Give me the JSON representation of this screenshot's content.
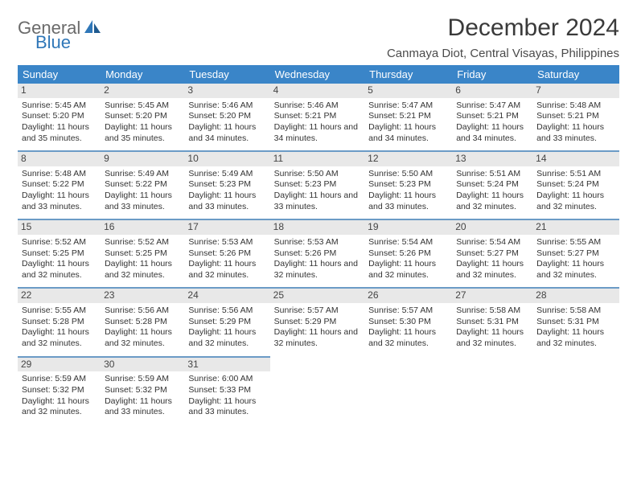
{
  "logo": {
    "text1": "General",
    "text2": "Blue"
  },
  "title": "December 2024",
  "location": "Canmaya Diot, Central Visayas, Philippines",
  "colors": {
    "header_bg": "#3a85c8",
    "row_divider": "#6b9bc6",
    "daynum_bg": "#e8e8e8",
    "logo_gray": "#6a6a6a",
    "logo_blue": "#2f77b8",
    "text": "#333333"
  },
  "weekdays": [
    "Sunday",
    "Monday",
    "Tuesday",
    "Wednesday",
    "Thursday",
    "Friday",
    "Saturday"
  ],
  "weeks": [
    [
      {
        "num": "1",
        "sunrise": "Sunrise: 5:45 AM",
        "sunset": "Sunset: 5:20 PM",
        "daylight": "Daylight: 11 hours and 35 minutes."
      },
      {
        "num": "2",
        "sunrise": "Sunrise: 5:45 AM",
        "sunset": "Sunset: 5:20 PM",
        "daylight": "Daylight: 11 hours and 35 minutes."
      },
      {
        "num": "3",
        "sunrise": "Sunrise: 5:46 AM",
        "sunset": "Sunset: 5:20 PM",
        "daylight": "Daylight: 11 hours and 34 minutes."
      },
      {
        "num": "4",
        "sunrise": "Sunrise: 5:46 AM",
        "sunset": "Sunset: 5:21 PM",
        "daylight": "Daylight: 11 hours and 34 minutes."
      },
      {
        "num": "5",
        "sunrise": "Sunrise: 5:47 AM",
        "sunset": "Sunset: 5:21 PM",
        "daylight": "Daylight: 11 hours and 34 minutes."
      },
      {
        "num": "6",
        "sunrise": "Sunrise: 5:47 AM",
        "sunset": "Sunset: 5:21 PM",
        "daylight": "Daylight: 11 hours and 34 minutes."
      },
      {
        "num": "7",
        "sunrise": "Sunrise: 5:48 AM",
        "sunset": "Sunset: 5:21 PM",
        "daylight": "Daylight: 11 hours and 33 minutes."
      }
    ],
    [
      {
        "num": "8",
        "sunrise": "Sunrise: 5:48 AM",
        "sunset": "Sunset: 5:22 PM",
        "daylight": "Daylight: 11 hours and 33 minutes."
      },
      {
        "num": "9",
        "sunrise": "Sunrise: 5:49 AM",
        "sunset": "Sunset: 5:22 PM",
        "daylight": "Daylight: 11 hours and 33 minutes."
      },
      {
        "num": "10",
        "sunrise": "Sunrise: 5:49 AM",
        "sunset": "Sunset: 5:23 PM",
        "daylight": "Daylight: 11 hours and 33 minutes."
      },
      {
        "num": "11",
        "sunrise": "Sunrise: 5:50 AM",
        "sunset": "Sunset: 5:23 PM",
        "daylight": "Daylight: 11 hours and 33 minutes."
      },
      {
        "num": "12",
        "sunrise": "Sunrise: 5:50 AM",
        "sunset": "Sunset: 5:23 PM",
        "daylight": "Daylight: 11 hours and 33 minutes."
      },
      {
        "num": "13",
        "sunrise": "Sunrise: 5:51 AM",
        "sunset": "Sunset: 5:24 PM",
        "daylight": "Daylight: 11 hours and 32 minutes."
      },
      {
        "num": "14",
        "sunrise": "Sunrise: 5:51 AM",
        "sunset": "Sunset: 5:24 PM",
        "daylight": "Daylight: 11 hours and 32 minutes."
      }
    ],
    [
      {
        "num": "15",
        "sunrise": "Sunrise: 5:52 AM",
        "sunset": "Sunset: 5:25 PM",
        "daylight": "Daylight: 11 hours and 32 minutes."
      },
      {
        "num": "16",
        "sunrise": "Sunrise: 5:52 AM",
        "sunset": "Sunset: 5:25 PM",
        "daylight": "Daylight: 11 hours and 32 minutes."
      },
      {
        "num": "17",
        "sunrise": "Sunrise: 5:53 AM",
        "sunset": "Sunset: 5:26 PM",
        "daylight": "Daylight: 11 hours and 32 minutes."
      },
      {
        "num": "18",
        "sunrise": "Sunrise: 5:53 AM",
        "sunset": "Sunset: 5:26 PM",
        "daylight": "Daylight: 11 hours and 32 minutes."
      },
      {
        "num": "19",
        "sunrise": "Sunrise: 5:54 AM",
        "sunset": "Sunset: 5:26 PM",
        "daylight": "Daylight: 11 hours and 32 minutes."
      },
      {
        "num": "20",
        "sunrise": "Sunrise: 5:54 AM",
        "sunset": "Sunset: 5:27 PM",
        "daylight": "Daylight: 11 hours and 32 minutes."
      },
      {
        "num": "21",
        "sunrise": "Sunrise: 5:55 AM",
        "sunset": "Sunset: 5:27 PM",
        "daylight": "Daylight: 11 hours and 32 minutes."
      }
    ],
    [
      {
        "num": "22",
        "sunrise": "Sunrise: 5:55 AM",
        "sunset": "Sunset: 5:28 PM",
        "daylight": "Daylight: 11 hours and 32 minutes."
      },
      {
        "num": "23",
        "sunrise": "Sunrise: 5:56 AM",
        "sunset": "Sunset: 5:28 PM",
        "daylight": "Daylight: 11 hours and 32 minutes."
      },
      {
        "num": "24",
        "sunrise": "Sunrise: 5:56 AM",
        "sunset": "Sunset: 5:29 PM",
        "daylight": "Daylight: 11 hours and 32 minutes."
      },
      {
        "num": "25",
        "sunrise": "Sunrise: 5:57 AM",
        "sunset": "Sunset: 5:29 PM",
        "daylight": "Daylight: 11 hours and 32 minutes."
      },
      {
        "num": "26",
        "sunrise": "Sunrise: 5:57 AM",
        "sunset": "Sunset: 5:30 PM",
        "daylight": "Daylight: 11 hours and 32 minutes."
      },
      {
        "num": "27",
        "sunrise": "Sunrise: 5:58 AM",
        "sunset": "Sunset: 5:31 PM",
        "daylight": "Daylight: 11 hours and 32 minutes."
      },
      {
        "num": "28",
        "sunrise": "Sunrise: 5:58 AM",
        "sunset": "Sunset: 5:31 PM",
        "daylight": "Daylight: 11 hours and 32 minutes."
      }
    ],
    [
      {
        "num": "29",
        "sunrise": "Sunrise: 5:59 AM",
        "sunset": "Sunset: 5:32 PM",
        "daylight": "Daylight: 11 hours and 32 minutes."
      },
      {
        "num": "30",
        "sunrise": "Sunrise: 5:59 AM",
        "sunset": "Sunset: 5:32 PM",
        "daylight": "Daylight: 11 hours and 33 minutes."
      },
      {
        "num": "31",
        "sunrise": "Sunrise: 6:00 AM",
        "sunset": "Sunset: 5:33 PM",
        "daylight": "Daylight: 11 hours and 33 minutes."
      },
      null,
      null,
      null,
      null
    ]
  ]
}
